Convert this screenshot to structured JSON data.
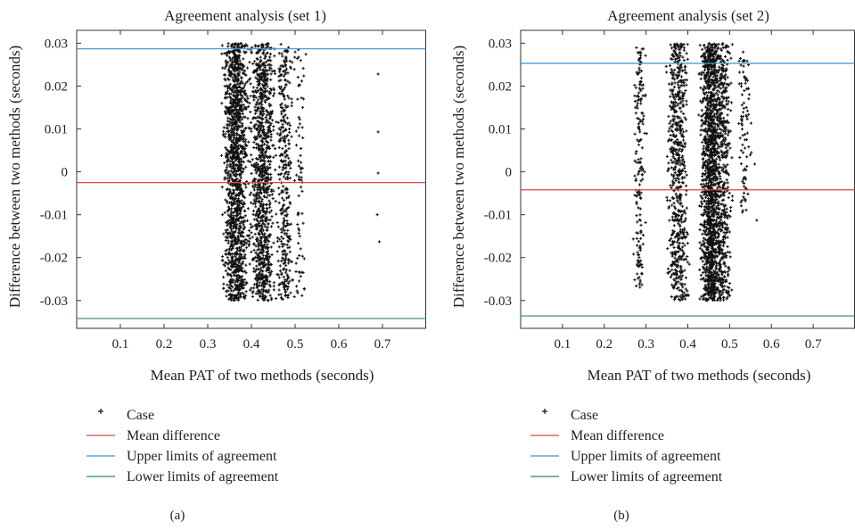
{
  "colors": {
    "mean": "#e0434b",
    "upper": "#3b93cf",
    "lower": "#2f8a5e",
    "point": "#111111",
    "axis": "#333333"
  },
  "chart_data": [
    {
      "type": "scatter",
      "title": "Agreement analysis (set 1)",
      "xlabel": "Mean PAT of two methods (seconds)",
      "ylabel": "Difference between two methods (seconds)",
      "caption": "(a)",
      "xlim": [
        0,
        0.8
      ],
      "ylim": [
        -0.0365,
        0.033
      ],
      "xticks": [
        0.1,
        0.2,
        0.3,
        0.4,
        0.5,
        0.6,
        0.7
      ],
      "yticks": [
        -0.03,
        -0.02,
        -0.01,
        0,
        0.01,
        0.02,
        0.03
      ],
      "grid": false,
      "reference_lines": {
        "mean_difference": -0.0025,
        "upper_limit": 0.0287,
        "lower_limit": -0.0342
      },
      "clusters": [
        {
          "x_center": 0.365,
          "x_spread": 0.025,
          "count": 1400,
          "y_min": -0.03,
          "y_max": 0.03
        },
        {
          "x_center": 0.425,
          "x_spread": 0.022,
          "count": 1000,
          "y_min": -0.03,
          "y_max": 0.03
        },
        {
          "x_center": 0.475,
          "x_spread": 0.015,
          "count": 350,
          "y_min": -0.03,
          "y_max": 0.03
        },
        {
          "x_center": 0.51,
          "x_spread": 0.012,
          "count": 80,
          "y_min": -0.03,
          "y_max": 0.029
        }
      ],
      "points": [
        {
          "x": 0.69,
          "y": 0.0228
        },
        {
          "x": 0.69,
          "y": 0.0093
        },
        {
          "x": 0.69,
          "y": -0.0003
        },
        {
          "x": 0.688,
          "y": -0.01
        },
        {
          "x": 0.693,
          "y": -0.0163
        }
      ],
      "legend": [
        {
          "label": "Case",
          "kind": "marker"
        },
        {
          "label": "Mean difference",
          "kind": "mean"
        },
        {
          "label": "Upper limits of agreement",
          "kind": "upper"
        },
        {
          "label": "Lower limits of agreement",
          "kind": "lower"
        }
      ]
    },
    {
      "type": "scatter",
      "title": "Agreement analysis (set 2)",
      "xlabel": "Mean PAT of two methods (seconds)",
      "ylabel": "Difference between two methods (seconds)",
      "caption": "(b)",
      "xlim": [
        0,
        0.8
      ],
      "ylim": [
        -0.0365,
        0.033
      ],
      "xticks": [
        0.1,
        0.2,
        0.3,
        0.4,
        0.5,
        0.6,
        0.7
      ],
      "yticks": [
        -0.03,
        -0.02,
        -0.01,
        0,
        0.01,
        0.02,
        0.03
      ],
      "grid": false,
      "reference_lines": {
        "mean_difference": -0.0042,
        "upper_limit": 0.0253,
        "lower_limit": -0.0336
      },
      "clusters": [
        {
          "x_center": 0.285,
          "x_spread": 0.012,
          "count": 180,
          "y_min": -0.027,
          "y_max": 0.029
        },
        {
          "x_center": 0.375,
          "x_spread": 0.02,
          "count": 650,
          "y_min": -0.03,
          "y_max": 0.03
        },
        {
          "x_center": 0.455,
          "x_spread": 0.02,
          "count": 1500,
          "y_min": -0.03,
          "y_max": 0.03
        },
        {
          "x_center": 0.485,
          "x_spread": 0.015,
          "count": 450,
          "y_min": -0.03,
          "y_max": 0.03
        },
        {
          "x_center": 0.535,
          "x_spread": 0.012,
          "count": 90,
          "y_min": -0.01,
          "y_max": 0.029
        }
      ],
      "points": [
        {
          "x": 0.56,
          "y": 0.0018
        },
        {
          "x": 0.565,
          "y": -0.0113
        },
        {
          "x": 0.552,
          "y": 0.0045
        }
      ],
      "legend": [
        {
          "label": "Case",
          "kind": "marker"
        },
        {
          "label": "Mean difference",
          "kind": "mean"
        },
        {
          "label": "Upper limits of agreement",
          "kind": "upper"
        },
        {
          "label": "Lower limits of agreement",
          "kind": "lower"
        }
      ]
    }
  ]
}
